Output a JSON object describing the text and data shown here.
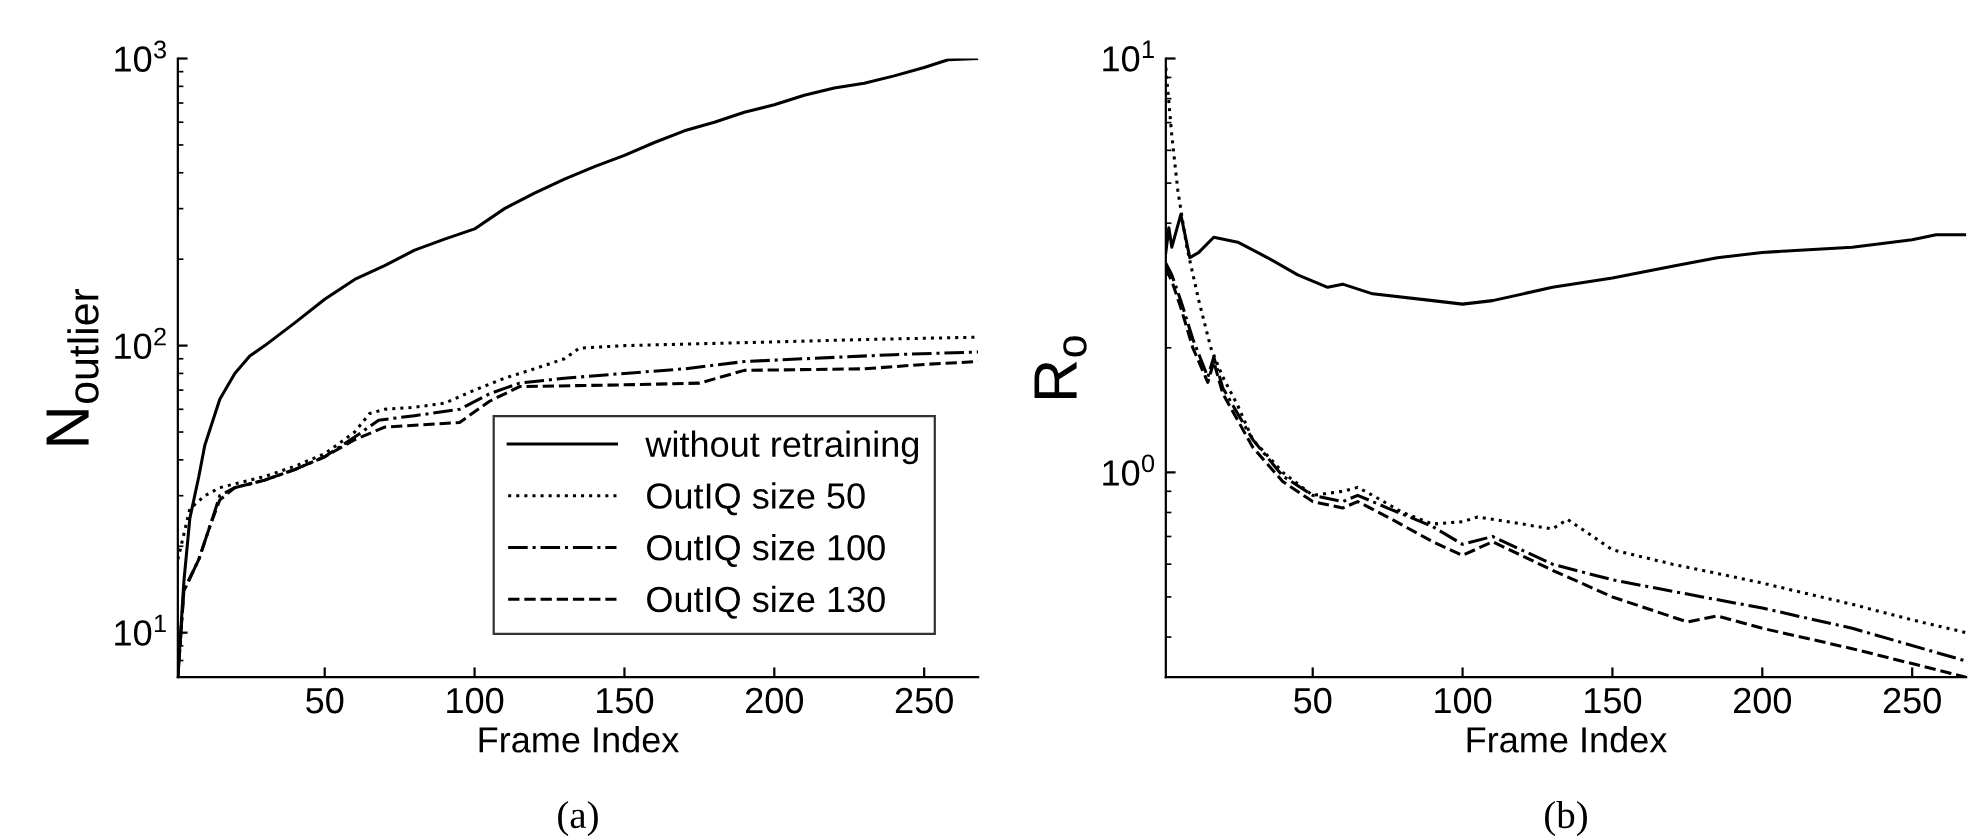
{
  "chart_data": [
    {
      "type": "line",
      "xlabel": "Frame Index",
      "ylabel": "N$_{outlier}$",
      "log": "y",
      "xlim": [
        1,
        268
      ],
      "ylim": [
        7,
        1000
      ],
      "xticks": [
        50,
        100,
        150,
        200,
        250
      ],
      "yticks": [
        {
          "value": 10,
          "label": "10$^{1}$"
        },
        {
          "value": 100,
          "label": "10$^{2}$"
        },
        {
          "value": 1000,
          "label": "10$^{3}$"
        }
      ],
      "legend": "bottom right",
      "annotations": [
        "(a)"
      ],
      "series": [
        {
          "name": "without retraining",
          "color": "#000000",
          "line_style": "solid",
          "x": [
            1,
            3,
            5,
            8,
            10,
            15,
            20,
            25,
            30,
            40,
            50,
            60,
            70,
            80,
            90,
            100,
            110,
            120,
            130,
            140,
            150,
            160,
            170,
            180,
            190,
            200,
            210,
            220,
            230,
            240,
            250,
            258,
            268
          ],
          "values": [
            7,
            15,
            25,
            35,
            45,
            65,
            80,
            92,
            100,
            120,
            145,
            170,
            190,
            215,
            235,
            255,
            300,
            340,
            380,
            420,
            460,
            510,
            560,
            600,
            650,
            690,
            745,
            790,
            820,
            870,
            930,
            990,
            1000
          ]
        },
        {
          "name": "OutIQ size 50",
          "color": "#000000",
          "line_style": "dotted",
          "x": [
            1,
            3,
            5,
            10,
            15,
            20,
            30,
            40,
            50,
            60,
            65,
            70,
            80,
            90,
            100,
            110,
            120,
            130,
            135,
            150,
            200,
            230,
            268
          ],
          "values": [
            18,
            22,
            27,
            30,
            32,
            33,
            35,
            38,
            42,
            50,
            58,
            60,
            61,
            63,
            70,
            77,
            83,
            90,
            98,
            100,
            103,
            105,
            107
          ]
        },
        {
          "name": "OutIQ size 100",
          "color": "#000000",
          "line_style": "dashdot",
          "x": [
            1,
            3,
            8,
            12,
            15,
            20,
            30,
            40,
            50,
            60,
            68,
            80,
            95,
            105,
            115,
            130,
            150,
            170,
            190,
            210,
            240,
            268
          ],
          "values": [
            7,
            14,
            18,
            24,
            30,
            32,
            34,
            37,
            41,
            48,
            55,
            57,
            60,
            68,
            74,
            77,
            80,
            83,
            88,
            90,
            93,
            95
          ]
        },
        {
          "name": "OutIQ size 130",
          "color": "#000000",
          "line_style": "dashed",
          "x": [
            1,
            3,
            8,
            12,
            15,
            20,
            30,
            40,
            50,
            60,
            70,
            95,
            105,
            115,
            150,
            175,
            190,
            230,
            250,
            268
          ],
          "values": [
            7,
            14,
            18,
            24,
            29,
            32,
            34,
            37,
            41,
            47,
            52,
            54,
            64,
            72,
            73,
            74,
            82,
            83,
            86,
            88
          ]
        }
      ]
    },
    {
      "type": "line",
      "xlabel": "Frame Index",
      "ylabel": "R$_{o}$",
      "log": "y",
      "xlim": [
        1,
        268
      ],
      "ylim": [
        0.32,
        10
      ],
      "xticks": [
        50,
        100,
        150,
        200,
        250
      ],
      "yticks": [
        {
          "value": 1,
          "label": "10$^{0}$"
        },
        {
          "value": 10,
          "label": "10$^{1}$"
        }
      ],
      "annotations": [
        "(b)"
      ],
      "series": [
        {
          "color": "#000000",
          "line_style": "solid",
          "x": [
            1,
            2,
            3,
            6,
            9,
            12,
            17,
            25,
            35,
            45,
            55,
            60,
            70,
            90,
            100,
            110,
            130,
            150,
            170,
            185,
            200,
            230,
            250,
            258,
            268
          ],
          "values": [
            3.4,
            3.9,
            3.5,
            4.2,
            3.3,
            3.4,
            3.7,
            3.6,
            3.3,
            3.0,
            2.8,
            2.85,
            2.7,
            2.6,
            2.55,
            2.6,
            2.8,
            2.95,
            3.15,
            3.3,
            3.4,
            3.5,
            3.65,
            3.75,
            3.75
          ]
        },
        {
          "color": "#000000",
          "line_style": "dotted",
          "x": [
            1,
            3,
            5,
            8,
            12,
            16,
            20,
            25,
            30,
            40,
            50,
            60,
            65,
            70,
            80,
            90,
            100,
            105,
            120,
            130,
            135,
            150,
            170,
            190,
            200,
            230,
            250,
            268
          ],
          "values": [
            9.5,
            6.5,
            4.8,
            3.5,
            2.6,
            2.0,
            1.7,
            1.45,
            1.2,
            1.0,
            0.88,
            0.9,
            0.92,
            0.88,
            0.8,
            0.75,
            0.76,
            0.78,
            0.75,
            0.73,
            0.77,
            0.65,
            0.6,
            0.56,
            0.54,
            0.48,
            0.44,
            0.41
          ]
        },
        {
          "color": "#000000",
          "line_style": "dashdot",
          "x": [
            1,
            3,
            6,
            10,
            15,
            17,
            20,
            30,
            40,
            50,
            60,
            65,
            75,
            90,
            100,
            110,
            130,
            150,
            180,
            200,
            230,
            268
          ],
          "values": [
            3.2,
            3.0,
            2.6,
            2.1,
            1.7,
            1.9,
            1.6,
            1.2,
            0.98,
            0.88,
            0.85,
            0.88,
            0.82,
            0.74,
            0.67,
            0.7,
            0.6,
            0.55,
            0.5,
            0.47,
            0.42,
            0.35
          ]
        },
        {
          "color": "#000000",
          "line_style": "dashed",
          "x": [
            1,
            3,
            6,
            10,
            15,
            17,
            20,
            30,
            40,
            50,
            60,
            65,
            75,
            90,
            100,
            110,
            130,
            150,
            175,
            185,
            200,
            230,
            268
          ],
          "values": [
            3.1,
            2.9,
            2.5,
            2.0,
            1.65,
            1.85,
            1.55,
            1.15,
            0.95,
            0.85,
            0.82,
            0.85,
            0.78,
            0.68,
            0.63,
            0.68,
            0.58,
            0.5,
            0.435,
            0.45,
            0.42,
            0.375,
            0.32
          ]
        }
      ]
    }
  ]
}
